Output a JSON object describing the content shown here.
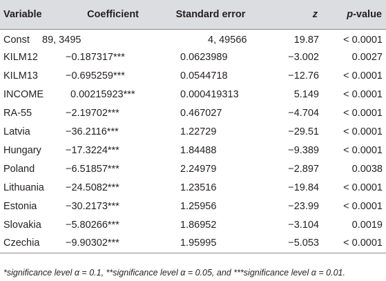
{
  "table": {
    "headers": {
      "variable": "Variable",
      "coefficient": "Coefficient",
      "standard_error": "Standard error",
      "z": "z",
      "p_value_p": "p",
      "p_value_rest": "-value"
    },
    "rows": [
      {
        "variable": "Const",
        "coefficient": "89, 3495",
        "standard_error": "4, 49566",
        "z": "19.87",
        "p_value": "< 0.0001"
      },
      {
        "variable": "KILM12",
        "coefficient": "−0.187317***",
        "standard_error": "0.0623989",
        "z": "−3.002",
        "p_value": "0.0027"
      },
      {
        "variable": "KILM13",
        "coefficient": "−0.695259***",
        "standard_error": "0.0544718",
        "z": "−12.76",
        "p_value": "< 0.0001"
      },
      {
        "variable": "INCOME",
        "coefficient": "0.00215923***",
        "standard_error": "0.000419313",
        "z": "5.149",
        "p_value": "< 0.0001"
      },
      {
        "variable": "RA-55",
        "coefficient": "−2.19702***",
        "standard_error": "0.467027",
        "z": "−4.704",
        "p_value": "< 0.0001"
      },
      {
        "variable": "Latvia",
        "coefficient": "−36.2116***",
        "standard_error": "1.22729",
        "z": "−29.51",
        "p_value": "< 0.0001"
      },
      {
        "variable": "Hungary",
        "coefficient": "−17.3224***",
        "standard_error": "1.84488",
        "z": "−9.389",
        "p_value": "< 0.0001"
      },
      {
        "variable": "Poland",
        "coefficient": "−6.51857***",
        "standard_error": "2.24979",
        "z": "−2.897",
        "p_value": "0.0038"
      },
      {
        "variable": "Lithuania",
        "coefficient": "−24.5082***",
        "standard_error": "1.23516",
        "z": "−19.84",
        "p_value": "< 0.0001"
      },
      {
        "variable": "Estonia",
        "coefficient": "−30.2173***",
        "standard_error": "1.25956",
        "z": "−23.99",
        "p_value": "< 0.0001"
      },
      {
        "variable": "Slovakia",
        "coefficient": "−5.80266***",
        "standard_error": "1.86952",
        "z": "−3.104",
        "p_value": "0.0019"
      },
      {
        "variable": "Czechia",
        "coefficient": "−9.90302***",
        "standard_error": "1.95995",
        "z": "−5.053",
        "p_value": "< 0.0001"
      }
    ]
  },
  "footnote": "*significance level α = 0.1, **significance level α = 0.05, and ***significance level α = 0.01."
}
